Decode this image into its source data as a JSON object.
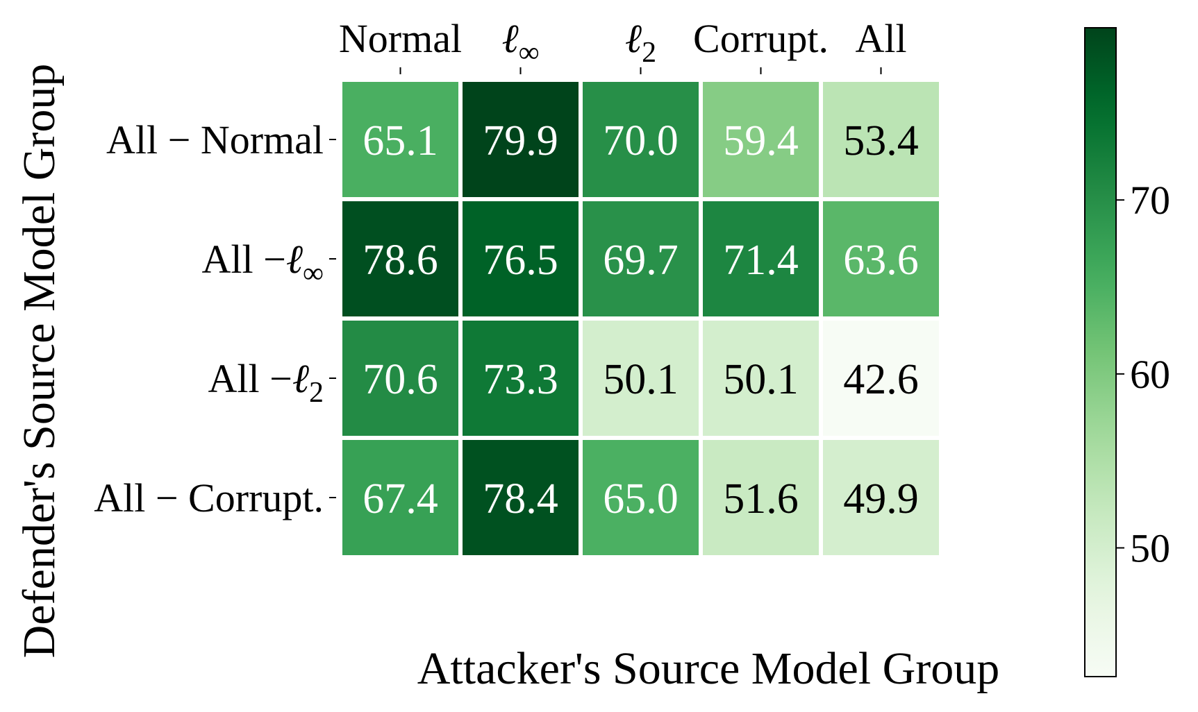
{
  "chart_data": {
    "type": "heatmap",
    "title": "",
    "xlabel": "Attacker's Source Model Group",
    "ylabel": "Defender's Source Model Group",
    "x_categories": [
      {
        "text": "Normal",
        "sub": ""
      },
      {
        "text": "ℓ",
        "sub": "∞"
      },
      {
        "text": "ℓ",
        "sub": "2"
      },
      {
        "text": "Corrupt.",
        "sub": ""
      },
      {
        "text": "All",
        "sub": ""
      }
    ],
    "y_categories": [
      {
        "text": "All − Normal",
        "sub": ""
      },
      {
        "text": "All −ℓ",
        "sub": "∞"
      },
      {
        "text": "All −ℓ",
        "sub": "2"
      },
      {
        "text": "All − Corrupt.",
        "sub": ""
      }
    ],
    "values": [
      [
        65.1,
        79.9,
        70.0,
        59.4,
        53.4
      ],
      [
        78.6,
        76.5,
        69.7,
        71.4,
        63.6
      ],
      [
        70.6,
        73.3,
        50.1,
        50.1,
        42.6
      ],
      [
        67.4,
        78.4,
        65.0,
        51.6,
        49.9
      ]
    ],
    "colorbar": {
      "colormap": "Greens",
      "vmin": 42.6,
      "vmax": 79.9,
      "ticks": [
        50,
        60,
        70
      ],
      "tick_labels": [
        "50",
        "60",
        "70"
      ]
    }
  }
}
